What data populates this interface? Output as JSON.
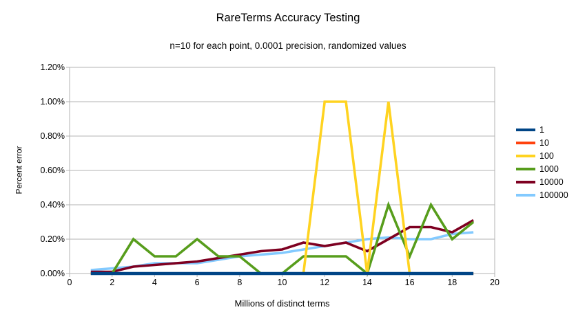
{
  "chart_data": {
    "type": "line",
    "title": "RareTerms Accuracy Testing",
    "subtitle": "n=10 for each point, 0.0001 precision, randomized values",
    "xlabel": "Millions of distinct terms",
    "ylabel": "Percent error",
    "xlim": [
      0,
      20
    ],
    "ylim": [
      0,
      1.2
    ],
    "y_unit": "percent",
    "grid": "horizontal",
    "legend_position": "right",
    "background_color": "#ffffff",
    "grid_color": "#b3b3b3",
    "x_ticks": [
      0,
      2,
      4,
      6,
      8,
      10,
      12,
      14,
      16,
      18,
      20
    ],
    "x_tick_labels": [
      "0",
      "2",
      "4",
      "6",
      "8",
      "10",
      "12",
      "14",
      "16",
      "18",
      "20"
    ],
    "y_ticks": [
      0,
      0.2,
      0.4,
      0.6,
      0.8,
      1.0,
      1.2
    ],
    "y_tick_labels": [
      "0.00%",
      "0.20%",
      "0.40%",
      "0.60%",
      "0.80%",
      "1.00%",
      "1.20%"
    ],
    "x": [
      1,
      2,
      3,
      4,
      5,
      6,
      7,
      8,
      9,
      10,
      11,
      12,
      13,
      14,
      15,
      16,
      17,
      18,
      19
    ],
    "series": [
      {
        "name": "1",
        "color": "#004586",
        "values": [
          0,
          0,
          0,
          0,
          0,
          0,
          0,
          0,
          0,
          0,
          0,
          0,
          0,
          0,
          0,
          0,
          0,
          0,
          0
        ]
      },
      {
        "name": "10",
        "color": "#FF420E",
        "values": [
          0,
          0,
          0,
          0,
          0,
          0,
          0,
          0,
          0,
          0,
          0,
          0,
          0,
          0,
          0,
          0,
          0,
          0,
          0
        ]
      },
      {
        "name": "100",
        "color": "#FFD320",
        "values": [
          0,
          0,
          0,
          0,
          0,
          0,
          0,
          0,
          0,
          0,
          0,
          1.0,
          1.0,
          0,
          1.0,
          0,
          0,
          0,
          0
        ]
      },
      {
        "name": "1000",
        "color": "#579D1C",
        "values": [
          0,
          0,
          0.2,
          0.1,
          0.1,
          0.2,
          0.1,
          0.1,
          0,
          0,
          0.1,
          0.1,
          0.1,
          0,
          0.4,
          0.1,
          0.4,
          0.2,
          0.3
        ]
      },
      {
        "name": "10000",
        "color": "#7E0021",
        "values": [
          0.01,
          0.01,
          0.04,
          0.05,
          0.06,
          0.07,
          0.09,
          0.11,
          0.13,
          0.14,
          0.18,
          0.16,
          0.18,
          0.13,
          0.2,
          0.27,
          0.27,
          0.24,
          0.31
        ]
      },
      {
        "name": "100000",
        "color": "#83CAFF",
        "values": [
          0.02,
          0.03,
          0.04,
          0.06,
          0.06,
          0.06,
          0.08,
          0.1,
          0.11,
          0.12,
          0.14,
          0.16,
          0.18,
          0.2,
          0.21,
          0.2,
          0.2,
          0.23,
          0.24
        ]
      }
    ],
    "draw_order": [
      "100000",
      "10000",
      "1000",
      "100",
      "10",
      "1"
    ]
  }
}
